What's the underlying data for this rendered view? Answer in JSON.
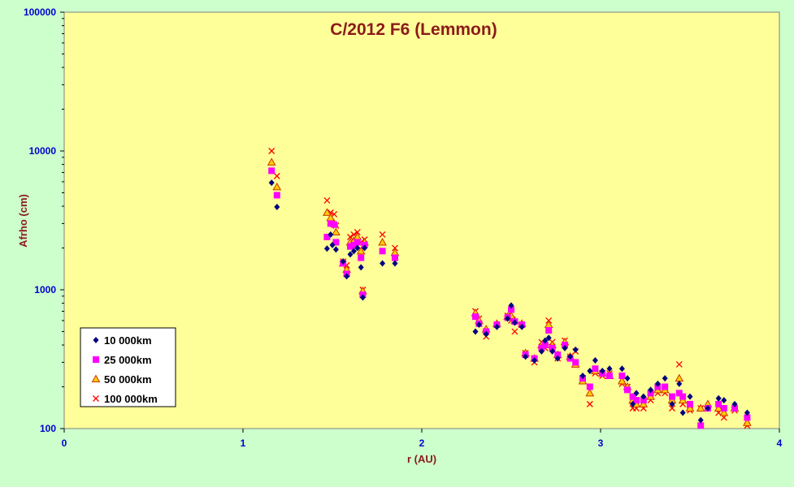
{
  "chart_data": {
    "type": "scatter",
    "title": "C/2012 F6 (Lemmon)",
    "xlabel": "r (AU)",
    "ylabel": "Afrho (cm)",
    "xlim": [
      0,
      4
    ],
    "ylim": [
      100,
      100000
    ],
    "yscale": "log",
    "x_ticks": [
      "0",
      "1",
      "2",
      "3",
      "4"
    ],
    "y_ticks": [
      "100",
      "1000",
      "10000",
      "100000"
    ],
    "grid": false,
    "legend_position": "bottom-left",
    "colors": {
      "plot_background": "#ffff99",
      "page_background": "#ccffcc",
      "title": "#8b1a1a",
      "ticks": "#0000cc"
    },
    "series": [
      {
        "name": "10 000km",
        "marker": "diamond",
        "color": "#000080",
        "points": [
          [
            1.16,
            5900
          ],
          [
            1.19,
            3950
          ],
          [
            1.47,
            1980
          ],
          [
            1.49,
            2500
          ],
          [
            1.5,
            2100
          ],
          [
            1.52,
            1950
          ],
          [
            1.56,
            1600
          ],
          [
            1.58,
            1250
          ],
          [
            1.6,
            1800
          ],
          [
            1.62,
            1900
          ],
          [
            1.64,
            2000
          ],
          [
            1.66,
            1450
          ],
          [
            1.67,
            880
          ],
          [
            1.68,
            2000
          ],
          [
            1.78,
            1550
          ],
          [
            1.85,
            1550
          ],
          [
            2.3,
            500
          ],
          [
            2.32,
            560
          ],
          [
            2.36,
            480
          ],
          [
            2.42,
            540
          ],
          [
            2.48,
            620
          ],
          [
            2.5,
            770
          ],
          [
            2.52,
            580
          ],
          [
            2.56,
            540
          ],
          [
            2.58,
            330
          ],
          [
            2.63,
            310
          ],
          [
            2.67,
            360
          ],
          [
            2.69,
            430
          ],
          [
            2.71,
            450
          ],
          [
            2.73,
            360
          ],
          [
            2.76,
            320
          ],
          [
            2.8,
            380
          ],
          [
            2.83,
            330
          ],
          [
            2.86,
            370
          ],
          [
            2.9,
            240
          ],
          [
            2.94,
            260
          ],
          [
            2.97,
            310
          ],
          [
            3.01,
            260
          ],
          [
            3.05,
            270
          ],
          [
            3.12,
            270
          ],
          [
            3.15,
            230
          ],
          [
            3.18,
            150
          ],
          [
            3.2,
            180
          ],
          [
            3.24,
            170
          ],
          [
            3.28,
            190
          ],
          [
            3.32,
            210
          ],
          [
            3.36,
            230
          ],
          [
            3.4,
            150
          ],
          [
            3.44,
            210
          ],
          [
            3.46,
            130
          ],
          [
            3.5,
            170
          ],
          [
            3.56,
            115
          ],
          [
            3.6,
            140
          ],
          [
            3.66,
            165
          ],
          [
            3.69,
            160
          ],
          [
            3.75,
            150
          ],
          [
            3.82,
            130
          ]
        ]
      },
      {
        "name": "25 000km",
        "marker": "square",
        "color": "#ff00ff",
        "points": [
          [
            1.16,
            7200
          ],
          [
            1.19,
            4800
          ],
          [
            1.47,
            2400
          ],
          [
            1.49,
            3000
          ],
          [
            1.51,
            2950
          ],
          [
            1.52,
            2200
          ],
          [
            1.56,
            1550
          ],
          [
            1.58,
            1300
          ],
          [
            1.6,
            2050
          ],
          [
            1.62,
            2100
          ],
          [
            1.64,
            2200
          ],
          [
            1.66,
            1700
          ],
          [
            1.67,
            920
          ],
          [
            1.68,
            2100
          ],
          [
            1.78,
            1900
          ],
          [
            1.85,
            1700
          ],
          [
            2.3,
            640
          ],
          [
            2.32,
            570
          ],
          [
            2.36,
            500
          ],
          [
            2.42,
            560
          ],
          [
            2.48,
            630
          ],
          [
            2.5,
            720
          ],
          [
            2.52,
            590
          ],
          [
            2.56,
            560
          ],
          [
            2.58,
            340
          ],
          [
            2.63,
            320
          ],
          [
            2.67,
            380
          ],
          [
            2.69,
            400
          ],
          [
            2.71,
            510
          ],
          [
            2.73,
            380
          ],
          [
            2.76,
            340
          ],
          [
            2.8,
            400
          ],
          [
            2.83,
            320
          ],
          [
            2.86,
            300
          ],
          [
            2.9,
            230
          ],
          [
            2.94,
            200
          ],
          [
            2.97,
            270
          ],
          [
            3.01,
            250
          ],
          [
            3.05,
            240
          ],
          [
            3.12,
            240
          ],
          [
            3.15,
            190
          ],
          [
            3.18,
            170
          ],
          [
            3.2,
            160
          ],
          [
            3.24,
            160
          ],
          [
            3.28,
            180
          ],
          [
            3.32,
            200
          ],
          [
            3.36,
            200
          ],
          [
            3.4,
            170
          ],
          [
            3.44,
            180
          ],
          [
            3.46,
            170
          ],
          [
            3.5,
            150
          ],
          [
            3.56,
            105
          ],
          [
            3.6,
            140
          ],
          [
            3.66,
            150
          ],
          [
            3.69,
            140
          ],
          [
            3.75,
            140
          ],
          [
            3.82,
            120
          ]
        ]
      },
      {
        "name": "50 000km",
        "marker": "triangle",
        "color": "#cc3300",
        "points": [
          [
            1.16,
            8300
          ],
          [
            1.19,
            5500
          ],
          [
            1.47,
            3600
          ],
          [
            1.49,
            3300
          ],
          [
            1.51,
            3000
          ],
          [
            1.52,
            2600
          ],
          [
            1.56,
            1550
          ],
          [
            1.58,
            1400
          ],
          [
            1.6,
            2200
          ],
          [
            1.62,
            2250
          ],
          [
            1.64,
            2400
          ],
          [
            1.66,
            1900
          ],
          [
            1.67,
            980
          ],
          [
            1.68,
            2200
          ],
          [
            1.78,
            2200
          ],
          [
            1.85,
            1850
          ],
          [
            2.3,
            680
          ],
          [
            2.32,
            600
          ],
          [
            2.36,
            520
          ],
          [
            2.42,
            570
          ],
          [
            2.48,
            640
          ],
          [
            2.5,
            650
          ],
          [
            2.52,
            600
          ],
          [
            2.56,
            570
          ],
          [
            2.58,
            350
          ],
          [
            2.63,
            320
          ],
          [
            2.67,
            400
          ],
          [
            2.69,
            420
          ],
          [
            2.71,
            560
          ],
          [
            2.73,
            400
          ],
          [
            2.76,
            340
          ],
          [
            2.8,
            420
          ],
          [
            2.83,
            330
          ],
          [
            2.86,
            290
          ],
          [
            2.9,
            220
          ],
          [
            2.94,
            180
          ],
          [
            2.97,
            260
          ],
          [
            3.01,
            250
          ],
          [
            3.05,
            240
          ],
          [
            3.12,
            220
          ],
          [
            3.15,
            200
          ],
          [
            3.18,
            160
          ],
          [
            3.2,
            150
          ],
          [
            3.24,
            150
          ],
          [
            3.28,
            170
          ],
          [
            3.32,
            190
          ],
          [
            3.36,
            190
          ],
          [
            3.4,
            160
          ],
          [
            3.44,
            230
          ],
          [
            3.46,
            160
          ],
          [
            3.5,
            140
          ],
          [
            3.56,
            140
          ],
          [
            3.6,
            150
          ],
          [
            3.66,
            140
          ],
          [
            3.69,
            130
          ],
          [
            3.75,
            140
          ],
          [
            3.82,
            110
          ]
        ]
      },
      {
        "name": "100 000km",
        "marker": "cross",
        "color": "#ff0000",
        "points": [
          [
            1.16,
            10000
          ],
          [
            1.19,
            6600
          ],
          [
            1.47,
            4400
          ],
          [
            1.49,
            3600
          ],
          [
            1.51,
            3500
          ],
          [
            1.52,
            2900
          ],
          [
            1.56,
            1600
          ],
          [
            1.58,
            1500
          ],
          [
            1.6,
            2400
          ],
          [
            1.62,
            2500
          ],
          [
            1.64,
            2600
          ],
          [
            1.66,
            2200
          ],
          [
            1.67,
            1000
          ],
          [
            1.68,
            2300
          ],
          [
            1.78,
            2500
          ],
          [
            1.85,
            2000
          ],
          [
            2.3,
            700
          ],
          [
            2.32,
            620
          ],
          [
            2.36,
            460
          ],
          [
            2.42,
            560
          ],
          [
            2.48,
            650
          ],
          [
            2.5,
            600
          ],
          [
            2.52,
            500
          ],
          [
            2.56,
            560
          ],
          [
            2.58,
            350
          ],
          [
            2.63,
            300
          ],
          [
            2.67,
            420
          ],
          [
            2.69,
            380
          ],
          [
            2.71,
            600
          ],
          [
            2.73,
            420
          ],
          [
            2.76,
            320
          ],
          [
            2.8,
            430
          ],
          [
            2.83,
            330
          ],
          [
            2.86,
            360
          ],
          [
            2.9,
            220
          ],
          [
            2.94,
            150
          ],
          [
            2.97,
            250
          ],
          [
            3.01,
            240
          ],
          [
            3.05,
            250
          ],
          [
            3.12,
            210
          ],
          [
            3.15,
            200
          ],
          [
            3.18,
            140
          ],
          [
            3.2,
            140
          ],
          [
            3.24,
            140
          ],
          [
            3.28,
            160
          ],
          [
            3.32,
            180
          ],
          [
            3.36,
            180
          ],
          [
            3.4,
            140
          ],
          [
            3.44,
            290
          ],
          [
            3.46,
            150
          ],
          [
            3.5,
            135
          ],
          [
            3.56,
            140
          ],
          [
            3.6,
            140
          ],
          [
            3.66,
            130
          ],
          [
            3.69,
            120
          ],
          [
            3.75,
            135
          ],
          [
            3.82,
            105
          ]
        ]
      }
    ]
  }
}
